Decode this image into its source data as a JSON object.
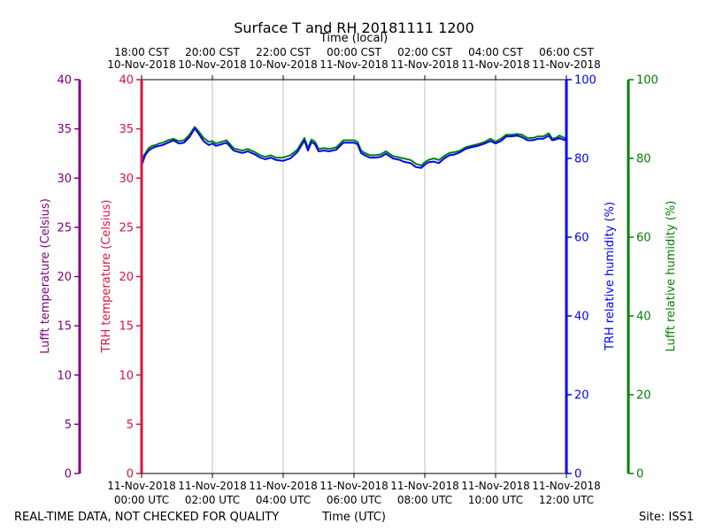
{
  "chart_data": {
    "type": "line",
    "title": "Surface T and RH 20181111 1200",
    "xlabel": "Time (UTC)",
    "top_xlabel": "Time (local)",
    "x_ticks_bottom": [
      {
        "line1": "11-Nov-2018",
        "line2": "00:00 UTC"
      },
      {
        "line1": "11-Nov-2018",
        "line2": "02:00 UTC"
      },
      {
        "line1": "11-Nov-2018",
        "line2": "04:00 UTC"
      },
      {
        "line1": "11-Nov-2018",
        "line2": "06:00 UTC"
      },
      {
        "line1": "11-Nov-2018",
        "line2": "08:00 UTC"
      },
      {
        "line1": "11-Nov-2018",
        "line2": "10:00 UTC"
      },
      {
        "line1": "11-Nov-2018",
        "line2": "12:00 UTC"
      }
    ],
    "x_ticks_top": [
      {
        "line1": "18:00 CST",
        "line2": "10-Nov-2018"
      },
      {
        "line1": "20:00 CST",
        "line2": "10-Nov-2018"
      },
      {
        "line1": "22:00 CST",
        "line2": "10-Nov-2018"
      },
      {
        "line1": "00:00 CST",
        "line2": "11-Nov-2018"
      },
      {
        "line1": "02:00 CST",
        "line2": "11-Nov-2018"
      },
      {
        "line1": "04:00 CST",
        "line2": "11-Nov-2018"
      },
      {
        "line1": "06:00 CST",
        "line2": "11-Nov-2018"
      }
    ],
    "xlim_hours_utc": [
      0,
      12
    ],
    "grid": "vertical",
    "axes": {
      "lufft_temp": {
        "label": "Lufft temperature (Celsius)",
        "ticks": [
          0,
          5,
          10,
          15,
          20,
          25,
          30,
          35,
          40
        ],
        "ylim": [
          0,
          40
        ],
        "color": "#800080"
      },
      "trh_temp": {
        "label": "TRH temperature (Celsius)",
        "ticks": [
          0,
          5,
          10,
          15,
          20,
          25,
          30,
          35,
          40
        ],
        "ylim": [
          0,
          40
        ],
        "color": "#dc143c"
      },
      "trh_rh": {
        "label": "TRH relative humidity (%)",
        "ticks": [
          0,
          20,
          40,
          60,
          80,
          100
        ],
        "ylim": [
          0,
          100
        ],
        "color": "#0000ff"
      },
      "lufft_rh": {
        "label": "Lufft relative humidity (%)",
        "ticks": [
          0,
          20,
          40,
          60,
          80,
          100
        ],
        "ylim": [
          0,
          100
        ],
        "color": "#008000"
      }
    },
    "series": [
      {
        "axis": "lufft_rh",
        "color": "#008000",
        "x": [
          0,
          0.1,
          0.2,
          0.3,
          0.4,
          0.5,
          0.6,
          0.75,
          0.9,
          1.05,
          1.2,
          1.35,
          1.5,
          1.6,
          1.75,
          1.9,
          2.0,
          2.1,
          2.25,
          2.4,
          2.6,
          2.75,
          2.85,
          3.0,
          3.2,
          3.35,
          3.5,
          3.65,
          3.8,
          4.0,
          4.2,
          4.4,
          4.6,
          4.7,
          4.8,
          4.9,
          5.0,
          5.15,
          5.3,
          5.5,
          5.7,
          5.9,
          6.0,
          6.1,
          6.2,
          6.3,
          6.45,
          6.6,
          6.75,
          6.9,
          7.1,
          7.3,
          7.4,
          7.6,
          7.75,
          7.9,
          8.0,
          8.1,
          8.25,
          8.4,
          8.55,
          8.7,
          8.85,
          9.0,
          9.15,
          9.3,
          9.5,
          9.7,
          9.85,
          10.0,
          10.15,
          10.3,
          10.45,
          10.6,
          10.75,
          10.9,
          11.05,
          11.2,
          11.35,
          11.5,
          11.6,
          11.7,
          11.8,
          11.9,
          12.0
        ],
        "values": [
          79.8,
          81.2,
          82.6,
          83.2,
          83.4,
          83.8,
          84.0,
          84.6,
          85.0,
          84.4,
          84.6,
          86.0,
          88.0,
          87.0,
          85.2,
          84.2,
          84.4,
          83.8,
          84.2,
          84.6,
          82.6,
          82.2,
          82.0,
          82.4,
          81.6,
          80.8,
          80.4,
          80.8,
          80.2,
          80.2,
          80.8,
          82.2,
          85.2,
          82.6,
          84.8,
          84.2,
          82.4,
          82.6,
          82.4,
          82.8,
          84.6,
          84.6,
          84.6,
          84.2,
          82.0,
          81.4,
          80.8,
          80.8,
          81.0,
          81.8,
          80.6,
          80.2,
          80.0,
          79.6,
          78.6,
          78.2,
          79.0,
          79.6,
          80.0,
          79.6,
          80.6,
          81.4,
          81.6,
          82.0,
          82.8,
          83.2,
          83.6,
          84.2,
          85.0,
          84.2,
          85.0,
          86.0,
          86.0,
          86.2,
          86.0,
          85.2,
          85.2,
          85.6,
          85.6,
          86.4,
          85.0,
          85.2,
          85.8,
          85.4,
          85.0
        ]
      },
      {
        "axis": "trh_rh",
        "color": "#0000ff",
        "x": [
          0,
          0.1,
          0.2,
          0.3,
          0.4,
          0.5,
          0.6,
          0.75,
          0.9,
          1.05,
          1.2,
          1.35,
          1.5,
          1.6,
          1.75,
          1.9,
          2.0,
          2.1,
          2.25,
          2.4,
          2.6,
          2.75,
          2.85,
          3.0,
          3.2,
          3.35,
          3.5,
          3.65,
          3.8,
          4.0,
          4.2,
          4.4,
          4.6,
          4.7,
          4.8,
          4.9,
          5.0,
          5.15,
          5.3,
          5.5,
          5.7,
          5.9,
          6.0,
          6.1,
          6.2,
          6.3,
          6.45,
          6.6,
          6.75,
          6.9,
          7.1,
          7.3,
          7.4,
          7.6,
          7.75,
          7.9,
          8.0,
          8.1,
          8.25,
          8.4,
          8.55,
          8.7,
          8.85,
          9.0,
          9.15,
          9.3,
          9.5,
          9.7,
          9.85,
          10.0,
          10.15,
          10.3,
          10.45,
          10.6,
          10.75,
          10.9,
          11.05,
          11.2,
          11.35,
          11.5,
          11.6,
          11.7,
          11.8,
          11.9,
          12.0
        ],
        "values": [
          78.2,
          80.8,
          82.0,
          82.6,
          83.0,
          83.2,
          83.4,
          84.0,
          84.6,
          83.8,
          84.0,
          85.4,
          87.6,
          86.4,
          84.4,
          83.4,
          83.8,
          83.2,
          83.6,
          84.0,
          82.0,
          81.6,
          81.4,
          81.8,
          81.0,
          80.2,
          79.8,
          80.2,
          79.6,
          79.4,
          80.0,
          81.6,
          84.6,
          82.0,
          84.2,
          83.6,
          81.8,
          82.0,
          81.8,
          82.2,
          84.0,
          84.0,
          84.0,
          83.6,
          81.4,
          80.8,
          80.2,
          80.2,
          80.4,
          81.2,
          80.0,
          79.6,
          79.2,
          78.8,
          77.8,
          77.6,
          78.4,
          79.0,
          79.2,
          78.8,
          80.0,
          80.8,
          81.0,
          81.6,
          82.4,
          82.8,
          83.2,
          83.8,
          84.4,
          83.8,
          84.4,
          85.6,
          85.6,
          85.8,
          85.4,
          84.6,
          84.6,
          85.0,
          85.0,
          85.8,
          84.6,
          84.8,
          85.2,
          84.8,
          84.6
        ]
      }
    ]
  },
  "footer": {
    "left_note": "REAL-TIME DATA, NOT CHECKED FOR QUALITY",
    "site": "Site: ISS1"
  }
}
